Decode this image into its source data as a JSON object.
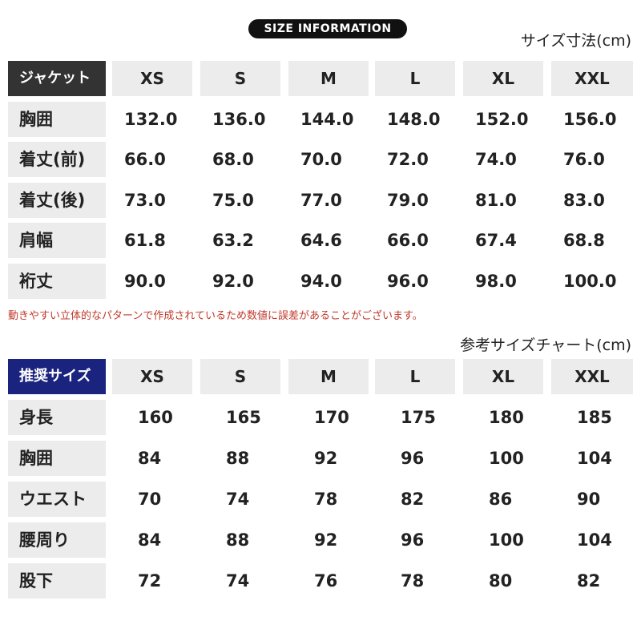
{
  "title": "SIZE INFORMATION",
  "table1": {
    "unit": "サイズ寸法(cm)",
    "header": [
      "ジャケット",
      "XS",
      "S",
      "M",
      "L",
      "XL",
      "XXL"
    ],
    "rows": [
      [
        "胸囲",
        "132.0",
        "136.0",
        "144.0",
        "148.0",
        "152.0",
        "156.0"
      ],
      [
        "着丈(前)",
        "66.0",
        "68.0",
        "70.0",
        "72.0",
        "74.0",
        "76.0"
      ],
      [
        "着丈(後)",
        "73.0",
        "75.0",
        "77.0",
        "79.0",
        "81.0",
        "83.0"
      ],
      [
        "肩幅",
        "61.8",
        "63.2",
        "64.6",
        "66.0",
        "67.4",
        "68.8"
      ],
      [
        "裄丈",
        "90.0",
        "92.0",
        "94.0",
        "96.0",
        "98.0",
        "100.0"
      ]
    ]
  },
  "note": "動きやすい立体的なパターンで作成されているため数値に誤差があることがございます。",
  "table2": {
    "unit": "参考サイズチャート(cm)",
    "header": [
      "推奨サイズ",
      "XS",
      "S",
      "M",
      "L",
      "XL",
      "XXL"
    ],
    "rows": [
      [
        "身長",
        "160",
        "165",
        "170",
        "175",
        "180",
        "185"
      ],
      [
        "胸囲",
        "84",
        "88",
        "92",
        "96",
        "100",
        "104"
      ],
      [
        "ウエスト",
        "70",
        "74",
        "78",
        "82",
        "86",
        "90"
      ],
      [
        "腰周り",
        "84",
        "88",
        "92",
        "96",
        "100",
        "104"
      ],
      [
        "股下",
        "72",
        "74",
        "76",
        "78",
        "80",
        "82"
      ]
    ]
  }
}
